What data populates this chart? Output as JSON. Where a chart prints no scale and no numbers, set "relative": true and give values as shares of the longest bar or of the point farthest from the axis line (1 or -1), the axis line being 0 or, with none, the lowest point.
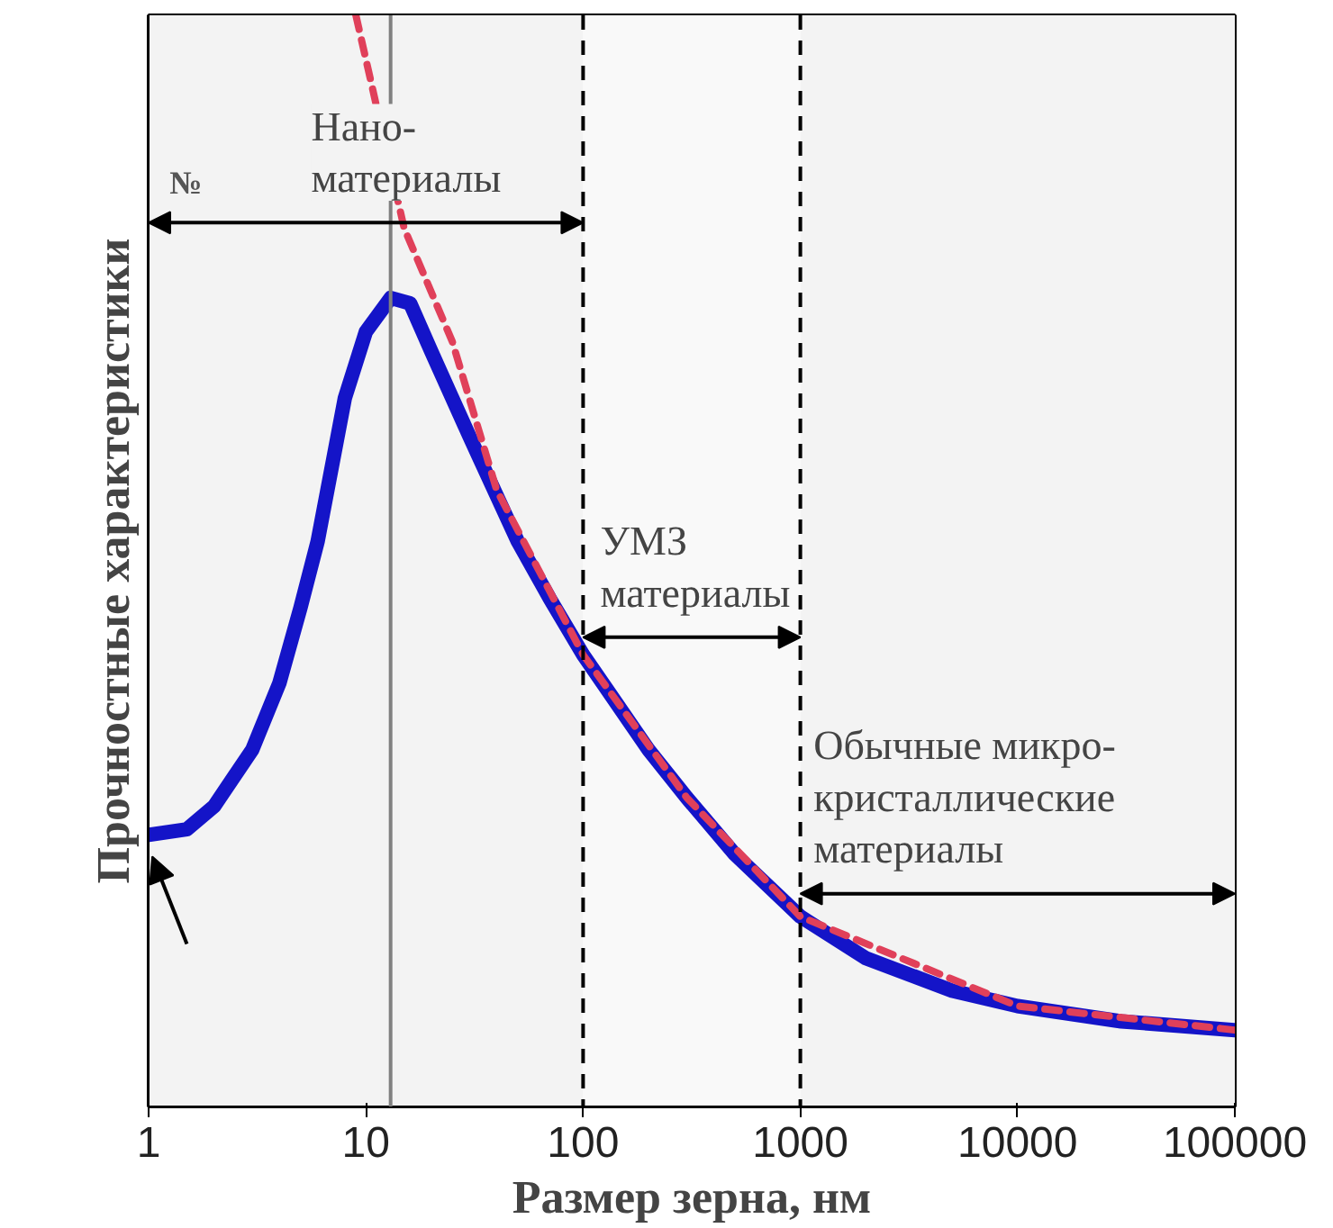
{
  "chart_data": {
    "type": "line",
    "relative": true,
    "xlabel": "Размер зерна, нм",
    "ylabel": "Прочностные характеристики",
    "log": "x",
    "xlim": [
      1,
      100000
    ],
    "xticks": [
      1,
      10,
      100,
      1000,
      10000,
      100000
    ],
    "tick_labels": "x",
    "grid": false,
    "series": [
      {
        "color": "#1414c8",
        "line_style": "solid",
        "x": [
          1,
          1.5,
          2,
          3,
          4,
          5,
          6,
          7,
          8,
          10,
          13,
          16,
          20,
          30,
          50,
          70,
          100,
          200,
          300,
          500,
          1000,
          2000,
          5000,
          10000,
          30000,
          100000
        ],
        "values": [
          0.249,
          0.254,
          0.275,
          0.327,
          0.388,
          0.457,
          0.518,
          0.588,
          0.649,
          0.71,
          0.741,
          0.736,
          0.692,
          0.614,
          0.518,
          0.466,
          0.414,
          0.327,
          0.283,
          0.231,
          0.174,
          0.136,
          0.106,
          0.092,
          0.078,
          0.07
        ]
      },
      {
        "color": "#e0405a",
        "line_style": "dashed",
        "x": [
          9,
          15,
          25,
          40,
          100,
          300,
          1000,
          10000,
          100000
        ],
        "values": [
          1.0,
          0.805,
          0.701,
          0.565,
          0.414,
          0.283,
          0.174,
          0.092,
          0.07
        ]
      }
    ],
    "ref_lines": [
      {
        "axis": "x",
        "value": 13,
        "color": "#808080",
        "line_style": "solid"
      },
      {
        "axis": "x",
        "value": 100,
        "color": "#000000",
        "line_style": "dashed"
      },
      {
        "axis": "x",
        "value": 1000,
        "color": "#000000",
        "line_style": "dashed"
      }
    ],
    "bands": [
      {
        "axis": "x",
        "from": 1,
        "to": 100,
        "label": "Нано-\nматериалы",
        "color": "#f3f3f3"
      },
      {
        "axis": "x",
        "from": 100,
        "to": 1000,
        "label": "УМЗ\nматериалы",
        "color": "#f9f9f9"
      },
      {
        "axis": "x",
        "from": 1000,
        "to": 100000,
        "label": "Обычные микро-\nкристаллические\nматериалы",
        "color": "#f3f3f3"
      }
    ],
    "annotations": [
      "№"
    ]
  }
}
